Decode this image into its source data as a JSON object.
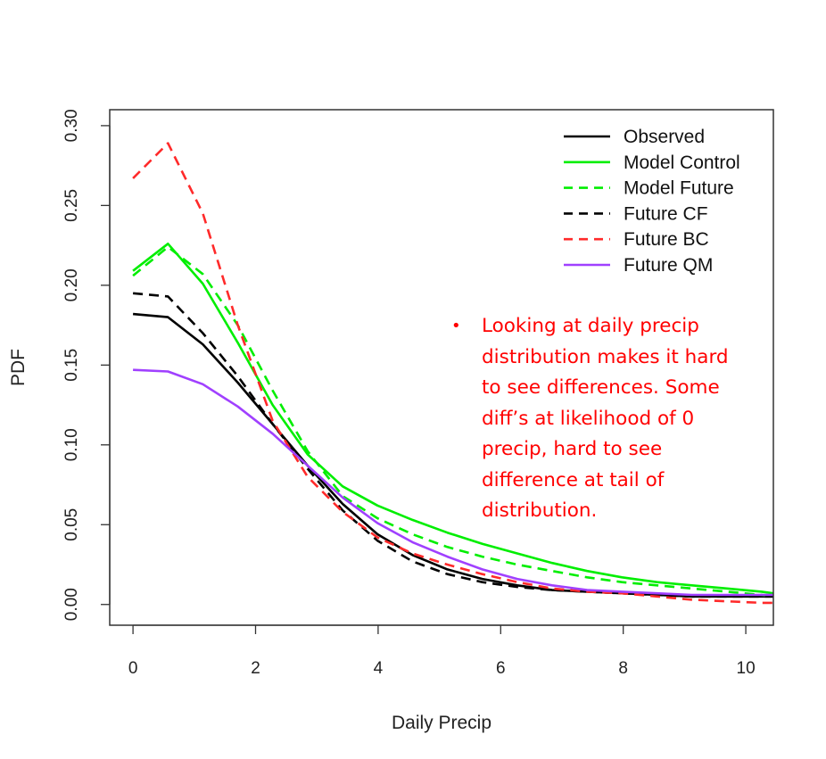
{
  "chart_data": {
    "type": "line",
    "title": "",
    "xlabel": "Daily Precip",
    "ylabel": "PDF",
    "xlim": [
      -0.38,
      10.45
    ],
    "ylim": [
      -0.013,
      0.31
    ],
    "x_ticks": [
      "0",
      "2",
      "4",
      "6",
      "8",
      "10"
    ],
    "y_ticks": [
      "0.00",
      "0.05",
      "0.10",
      "0.15",
      "0.20",
      "0.25",
      "0.30"
    ],
    "grid": false,
    "legend_position": "top-right",
    "x": [
      0,
      0.57,
      1.14,
      1.71,
      2.28,
      2.85,
      3.42,
      3.99,
      4.56,
      5.13,
      5.7,
      6.27,
      6.84,
      7.41,
      7.98,
      8.55,
      9.12,
      9.69,
      10.26,
      10.45
    ],
    "series": [
      {
        "name": "Observed",
        "color": "#000000",
        "dash": "solid",
        "values": [
          0.182,
          0.18,
          0.163,
          0.139,
          0.113,
          0.087,
          0.063,
          0.044,
          0.031,
          0.022,
          0.016,
          0.012,
          0.009,
          0.008,
          0.007,
          0.006,
          0.005,
          0.005,
          0.005,
          0.005
        ]
      },
      {
        "name": "Model Control",
        "color": "#00ee00",
        "dash": "solid",
        "values": [
          0.209,
          0.226,
          0.201,
          0.164,
          0.125,
          0.094,
          0.074,
          0.062,
          0.053,
          0.045,
          0.038,
          0.032,
          0.026,
          0.021,
          0.017,
          0.014,
          0.012,
          0.01,
          0.008,
          0.007
        ]
      },
      {
        "name": "Model Future",
        "color": "#00ee00",
        "dash": "dashed",
        "values": [
          0.206,
          0.224,
          0.207,
          0.175,
          0.134,
          0.096,
          0.068,
          0.054,
          0.044,
          0.036,
          0.03,
          0.025,
          0.021,
          0.017,
          0.014,
          0.012,
          0.01,
          0.008,
          0.006,
          0.005
        ]
      },
      {
        "name": "Future CF",
        "color": "#000000",
        "dash": "dashed",
        "values": [
          0.195,
          0.193,
          0.17,
          0.143,
          0.113,
          0.085,
          0.059,
          0.04,
          0.027,
          0.019,
          0.014,
          0.011,
          0.009,
          0.008,
          0.007,
          0.006,
          0.005,
          0.005,
          0.005,
          0.005
        ]
      },
      {
        "name": "Future BC",
        "color": "#ff2a2a",
        "dash": "dashed",
        "values": [
          0.267,
          0.289,
          0.245,
          0.175,
          0.115,
          0.08,
          0.058,
          0.042,
          0.032,
          0.025,
          0.019,
          0.014,
          0.01,
          0.008,
          0.007,
          0.005,
          0.003,
          0.002,
          0.001,
          0.001
        ]
      },
      {
        "name": "Future QM",
        "color": "#a040ff",
        "dash": "solid",
        "values": [
          0.147,
          0.146,
          0.138,
          0.124,
          0.107,
          0.087,
          0.067,
          0.051,
          0.039,
          0.03,
          0.022,
          0.016,
          0.012,
          0.009,
          0.008,
          0.007,
          0.006,
          0.006,
          0.006,
          0.006
        ]
      }
    ]
  },
  "annotation": {
    "bullet": "•",
    "text": "Looking at daily precip distribution makes it hard to see differences. Some diff’s at likelihood of 0 precip, hard to see difference at tail of distribution.",
    "color": "#ff0000"
  }
}
